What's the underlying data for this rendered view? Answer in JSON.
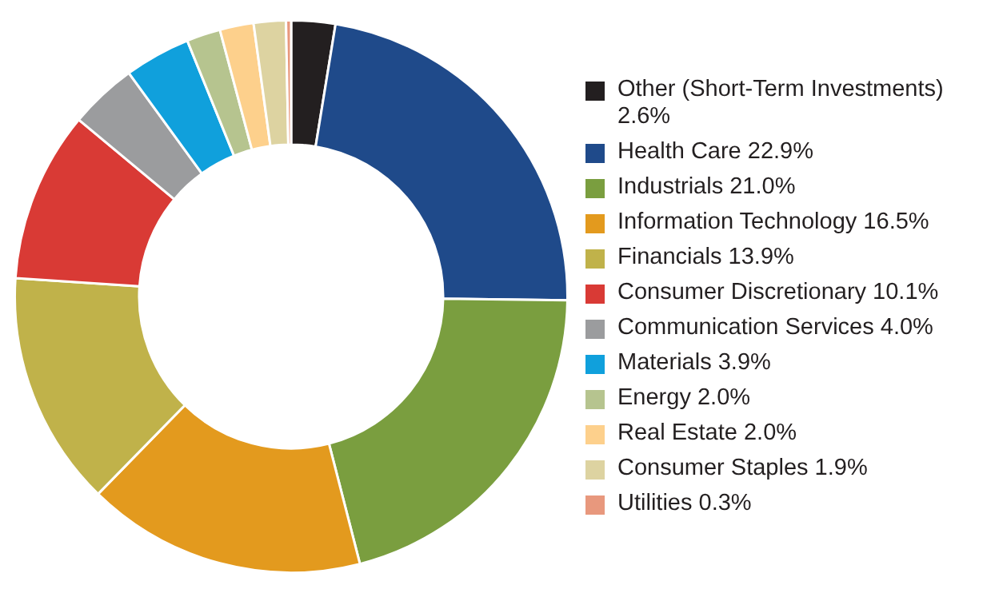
{
  "chart_data": {
    "type": "donut",
    "categories": [
      "Other (Short-Term Investments)",
      "Health Care",
      "Industrials",
      "Information Technology",
      "Financials",
      "Consumer Discretionary",
      "Communication Services",
      "Materials",
      "Energy",
      "Real Estate",
      "Consumer Staples",
      "Utilities"
    ],
    "values": [
      2.6,
      22.9,
      21.0,
      16.5,
      13.9,
      10.1,
      4.0,
      3.9,
      2.0,
      2.0,
      1.9,
      0.3
    ],
    "value_labels": [
      "2.6%",
      "22.9%",
      "21.0%",
      "16.5%",
      "13.9%",
      "10.1%",
      "4.0%",
      "3.9%",
      "2.0%",
      "2.0%",
      "1.9%",
      "0.3%"
    ],
    "colors": [
      "#231f20",
      "#1f4a8a",
      "#7a9e3f",
      "#e39a1e",
      "#c0b24a",
      "#d93a35",
      "#9b9c9e",
      "#10a0dc",
      "#b6c48f",
      "#fdd08c",
      "#ddd3a1",
      "#e8987d"
    ],
    "legend": "right"
  }
}
